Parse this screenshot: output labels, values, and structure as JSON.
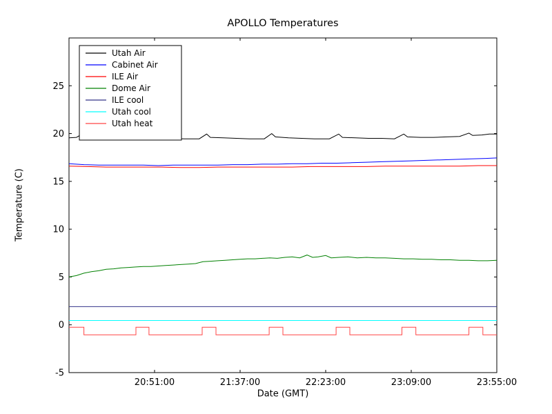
{
  "chart_data": {
    "type": "line",
    "title": "APOLLO Temperatures",
    "xlabel": "Date (GMT)",
    "ylabel": "Temperature (C)",
    "grid": false,
    "legend_position": "upper-left",
    "x_range": [
      0,
      230
    ],
    "xticks": [
      {
        "t": 46,
        "label": "20:51:00"
      },
      {
        "t": 92,
        "label": "21:37:00"
      },
      {
        "t": 138,
        "label": "22:23:00"
      },
      {
        "t": 184,
        "label": "23:09:00"
      },
      {
        "t": 230,
        "label": "23:55:00"
      }
    ],
    "ylim": [
      -5,
      30
    ],
    "yticks": [
      -5,
      0,
      5,
      10,
      15,
      20,
      25
    ],
    "series": [
      {
        "name": "Utah Air",
        "color": "#000000",
        "points": [
          [
            0,
            19.55
          ],
          [
            4,
            19.6
          ],
          [
            7,
            19.95
          ],
          [
            9,
            19.65
          ],
          [
            15,
            19.6
          ],
          [
            22,
            19.55
          ],
          [
            29,
            19.5
          ],
          [
            36,
            19.45
          ],
          [
            39,
            19.9
          ],
          [
            41,
            19.6
          ],
          [
            48,
            19.55
          ],
          [
            55,
            19.5
          ],
          [
            62,
            19.45
          ],
          [
            70,
            19.45
          ],
          [
            74,
            19.95
          ],
          [
            76,
            19.6
          ],
          [
            83,
            19.55
          ],
          [
            90,
            19.5
          ],
          [
            97,
            19.45
          ],
          [
            105,
            19.45
          ],
          [
            109,
            20.0
          ],
          [
            111,
            19.65
          ],
          [
            118,
            19.55
          ],
          [
            125,
            19.5
          ],
          [
            132,
            19.45
          ],
          [
            140,
            19.45
          ],
          [
            145,
            19.95
          ],
          [
            147,
            19.6
          ],
          [
            154,
            19.55
          ],
          [
            161,
            19.5
          ],
          [
            168,
            19.5
          ],
          [
            175,
            19.45
          ],
          [
            180,
            19.95
          ],
          [
            182,
            19.65
          ],
          [
            189,
            19.6
          ],
          [
            196,
            19.6
          ],
          [
            203,
            19.65
          ],
          [
            210,
            19.7
          ],
          [
            215,
            20.05
          ],
          [
            217,
            19.8
          ],
          [
            222,
            19.85
          ],
          [
            226,
            19.95
          ],
          [
            230,
            19.95
          ]
        ]
      },
      {
        "name": "Cabinet Air",
        "color": "#0000ff",
        "points": [
          [
            0,
            16.85
          ],
          [
            8,
            16.75
          ],
          [
            16,
            16.7
          ],
          [
            24,
            16.7
          ],
          [
            32,
            16.7
          ],
          [
            40,
            16.7
          ],
          [
            48,
            16.65
          ],
          [
            56,
            16.7
          ],
          [
            64,
            16.7
          ],
          [
            72,
            16.7
          ],
          [
            80,
            16.7
          ],
          [
            88,
            16.75
          ],
          [
            96,
            16.75
          ],
          [
            104,
            16.8
          ],
          [
            112,
            16.8
          ],
          [
            120,
            16.85
          ],
          [
            128,
            16.85
          ],
          [
            136,
            16.9
          ],
          [
            144,
            16.9
          ],
          [
            152,
            16.95
          ],
          [
            160,
            17.0
          ],
          [
            168,
            17.05
          ],
          [
            176,
            17.1
          ],
          [
            184,
            17.15
          ],
          [
            192,
            17.2
          ],
          [
            200,
            17.25
          ],
          [
            208,
            17.3
          ],
          [
            216,
            17.35
          ],
          [
            224,
            17.4
          ],
          [
            230,
            17.45
          ]
        ]
      },
      {
        "name": "ILE Air",
        "color": "#ff0000",
        "points": [
          [
            0,
            16.6
          ],
          [
            10,
            16.55
          ],
          [
            20,
            16.5
          ],
          [
            30,
            16.5
          ],
          [
            40,
            16.5
          ],
          [
            50,
            16.5
          ],
          [
            60,
            16.45
          ],
          [
            70,
            16.45
          ],
          [
            80,
            16.5
          ],
          [
            90,
            16.5
          ],
          [
            100,
            16.5
          ],
          [
            110,
            16.5
          ],
          [
            120,
            16.5
          ],
          [
            130,
            16.55
          ],
          [
            140,
            16.55
          ],
          [
            150,
            16.55
          ],
          [
            160,
            16.55
          ],
          [
            170,
            16.6
          ],
          [
            180,
            16.6
          ],
          [
            190,
            16.6
          ],
          [
            200,
            16.6
          ],
          [
            210,
            16.6
          ],
          [
            220,
            16.65
          ],
          [
            230,
            16.65
          ]
        ]
      },
      {
        "name": "Dome Air",
        "color": "#008000",
        "points": [
          [
            0,
            5.0
          ],
          [
            4,
            5.15
          ],
          [
            8,
            5.4
          ],
          [
            12,
            5.55
          ],
          [
            16,
            5.65
          ],
          [
            20,
            5.8
          ],
          [
            24,
            5.85
          ],
          [
            28,
            5.95
          ],
          [
            32,
            6.0
          ],
          [
            36,
            6.05
          ],
          [
            40,
            6.1
          ],
          [
            44,
            6.1
          ],
          [
            48,
            6.15
          ],
          [
            52,
            6.2
          ],
          [
            56,
            6.25
          ],
          [
            60,
            6.3
          ],
          [
            64,
            6.35
          ],
          [
            68,
            6.4
          ],
          [
            72,
            6.6
          ],
          [
            76,
            6.65
          ],
          [
            80,
            6.7
          ],
          [
            84,
            6.75
          ],
          [
            88,
            6.8
          ],
          [
            92,
            6.85
          ],
          [
            96,
            6.9
          ],
          [
            100,
            6.9
          ],
          [
            104,
            6.95
          ],
          [
            108,
            7.0
          ],
          [
            112,
            6.95
          ],
          [
            116,
            7.05
          ],
          [
            120,
            7.1
          ],
          [
            124,
            7.0
          ],
          [
            128,
            7.3
          ],
          [
            131,
            7.05
          ],
          [
            134,
            7.1
          ],
          [
            138,
            7.25
          ],
          [
            141,
            7.0
          ],
          [
            145,
            7.05
          ],
          [
            150,
            7.1
          ],
          [
            155,
            7.0
          ],
          [
            160,
            7.05
          ],
          [
            165,
            7.0
          ],
          [
            170,
            7.0
          ],
          [
            175,
            6.95
          ],
          [
            180,
            6.9
          ],
          [
            185,
            6.9
          ],
          [
            190,
            6.85
          ],
          [
            195,
            6.85
          ],
          [
            200,
            6.8
          ],
          [
            205,
            6.8
          ],
          [
            210,
            6.75
          ],
          [
            215,
            6.75
          ],
          [
            220,
            6.7
          ],
          [
            225,
            6.7
          ],
          [
            230,
            6.75
          ]
        ]
      },
      {
        "name": "ILE cool",
        "color": "#333388",
        "points": [
          [
            0,
            1.9
          ],
          [
            230,
            1.9
          ]
        ]
      },
      {
        "name": "Utah cool",
        "color": "#00ffff",
        "points": [
          [
            0,
            0.45
          ],
          [
            230,
            0.45
          ]
        ]
      },
      {
        "name": "Utah heat",
        "color": "#ff4444",
        "points": [
          [
            0,
            -0.25
          ],
          [
            8,
            -0.25
          ],
          [
            8,
            -1.05
          ],
          [
            36,
            -1.05
          ],
          [
            36,
            -0.25
          ],
          [
            43,
            -0.25
          ],
          [
            43,
            -1.05
          ],
          [
            71.6,
            -1.05
          ],
          [
            71.6,
            -0.25
          ],
          [
            79,
            -0.25
          ],
          [
            79,
            -1.05
          ],
          [
            107.6,
            -1.05
          ],
          [
            107.6,
            -0.25
          ],
          [
            115,
            -0.25
          ],
          [
            115,
            -1.05
          ],
          [
            143.6,
            -1.05
          ],
          [
            143.6,
            -0.25
          ],
          [
            151,
            -0.25
          ],
          [
            151,
            -1.05
          ],
          [
            179,
            -1.05
          ],
          [
            179,
            -0.25
          ],
          [
            186.5,
            -0.25
          ],
          [
            186.5,
            -1.05
          ],
          [
            215,
            -1.05
          ],
          [
            215,
            -0.25
          ],
          [
            222.5,
            -0.25
          ],
          [
            222.5,
            -1.05
          ],
          [
            230,
            -1.05
          ]
        ]
      }
    ]
  }
}
